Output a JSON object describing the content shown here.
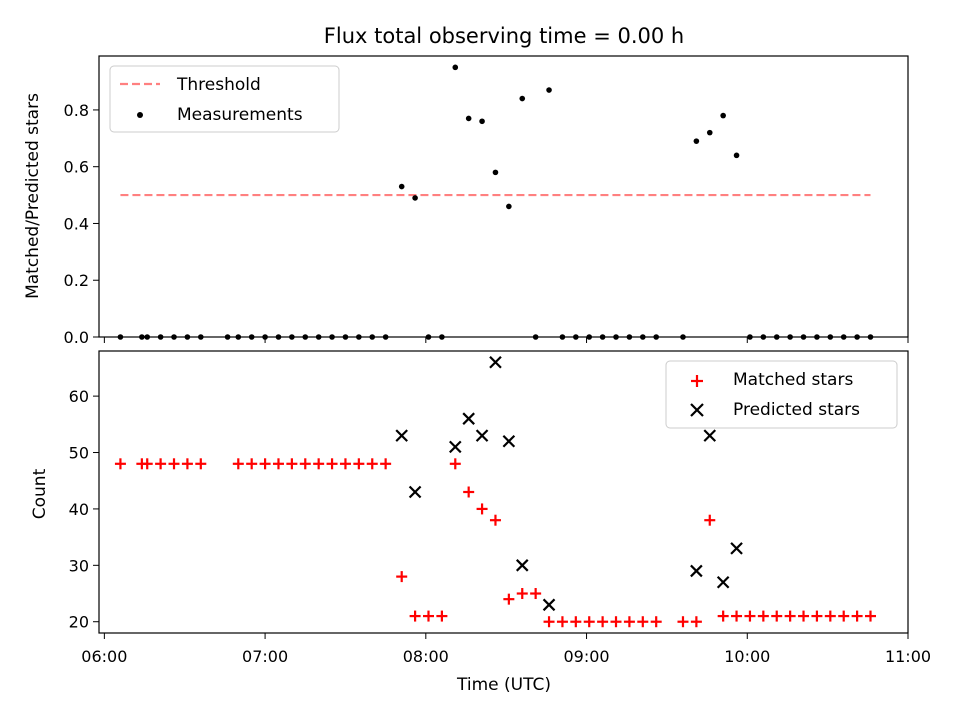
{
  "chart_data": [
    {
      "type": "scatter",
      "title": "Flux total observing time = 0.00 h",
      "ylabel": "Matched/Predicted stars",
      "ylim": [
        0,
        0.99
      ],
      "yticks": [
        0.0,
        0.2,
        0.4,
        0.6,
        0.8
      ],
      "ytick_labels": [
        "0.0",
        "0.2",
        "0.4",
        "0.6",
        "0.8"
      ],
      "xlim": [
        "05:58",
        "11:00"
      ],
      "legend": {
        "placement": "upper-left",
        "entries": [
          "Threshold",
          "Measurements"
        ]
      },
      "threshold": {
        "name": "Threshold",
        "value": 0.5,
        "x_range": [
          "06:06",
          "10:46"
        ],
        "color": "#ff8080",
        "style": "dashed"
      },
      "series": [
        {
          "name": "Measurements",
          "color": "#000000",
          "marker": "dot",
          "points": [
            [
              "06:06",
              0
            ],
            [
              "06:14",
              0
            ],
            [
              "06:16",
              0
            ],
            [
              "06:21",
              0
            ],
            [
              "06:26",
              0
            ],
            [
              "06:31",
              0
            ],
            [
              "06:36",
              0
            ],
            [
              "06:46",
              0
            ],
            [
              "06:50",
              0
            ],
            [
              "06:55",
              0
            ],
            [
              "07:00",
              0
            ],
            [
              "07:05",
              0
            ],
            [
              "07:10",
              0
            ],
            [
              "07:15",
              0
            ],
            [
              "07:20",
              0
            ],
            [
              "07:25",
              0
            ],
            [
              "07:30",
              0
            ],
            [
              "07:35",
              0
            ],
            [
              "07:40",
              0
            ],
            [
              "07:45",
              0
            ],
            [
              "07:51",
              0.53
            ],
            [
              "07:56",
              0.49
            ],
            [
              "08:01",
              0
            ],
            [
              "08:06",
              0
            ],
            [
              "08:11",
              0.95
            ],
            [
              "08:16",
              0.77
            ],
            [
              "08:21",
              0.76
            ],
            [
              "08:26",
              0.58
            ],
            [
              "08:31",
              0.46
            ],
            [
              "08:36",
              0.84
            ],
            [
              "08:41",
              0
            ],
            [
              "08:46",
              0.87
            ],
            [
              "08:51",
              0
            ],
            [
              "08:56",
              0
            ],
            [
              "09:01",
              0
            ],
            [
              "09:06",
              0
            ],
            [
              "09:11",
              0
            ],
            [
              "09:16",
              0
            ],
            [
              "09:21",
              0
            ],
            [
              "09:26",
              0
            ],
            [
              "09:36",
              0
            ],
            [
              "09:41",
              0.69
            ],
            [
              "09:46",
              0.72
            ],
            [
              "09:51",
              0.78
            ],
            [
              "09:56",
              0.64
            ],
            [
              "10:01",
              0
            ],
            [
              "10:06",
              0
            ],
            [
              "10:11",
              0
            ],
            [
              "10:16",
              0
            ],
            [
              "10:21",
              0
            ],
            [
              "10:26",
              0
            ],
            [
              "10:31",
              0
            ],
            [
              "10:36",
              0
            ],
            [
              "10:41",
              0
            ],
            [
              "10:46",
              0
            ]
          ]
        }
      ]
    },
    {
      "type": "scatter",
      "xlabel": "Time (UTC)",
      "ylabel": "Count",
      "ylim": [
        18,
        68
      ],
      "yticks": [
        20,
        30,
        40,
        50,
        60
      ],
      "ytick_labels": [
        "20",
        "30",
        "40",
        "50",
        "60"
      ],
      "xlim": [
        "05:58",
        "11:00"
      ],
      "xticks": [
        "06:00",
        "07:00",
        "08:00",
        "09:00",
        "10:00",
        "11:00"
      ],
      "xtick_labels": [
        "06:00",
        "07:00",
        "08:00",
        "09:00",
        "10:00",
        "11:00"
      ],
      "legend": {
        "placement": "upper-right",
        "entries": [
          "Matched stars",
          "Predicted stars"
        ]
      },
      "series": [
        {
          "name": "Matched stars",
          "color": "#ff0000",
          "marker": "plus",
          "points": [
            [
              "06:06",
              48
            ],
            [
              "06:14",
              48
            ],
            [
              "06:16",
              48
            ],
            [
              "06:21",
              48
            ],
            [
              "06:26",
              48
            ],
            [
              "06:31",
              48
            ],
            [
              "06:36",
              48
            ],
            [
              "06:50",
              48
            ],
            [
              "06:55",
              48
            ],
            [
              "07:00",
              48
            ],
            [
              "07:05",
              48
            ],
            [
              "07:10",
              48
            ],
            [
              "07:15",
              48
            ],
            [
              "07:20",
              48
            ],
            [
              "07:25",
              48
            ],
            [
              "07:30",
              48
            ],
            [
              "07:35",
              48
            ],
            [
              "07:40",
              48
            ],
            [
              "07:45",
              48
            ],
            [
              "07:51",
              28
            ],
            [
              "07:56",
              21
            ],
            [
              "08:01",
              21
            ],
            [
              "08:06",
              21
            ],
            [
              "08:11",
              48
            ],
            [
              "08:16",
              43
            ],
            [
              "08:21",
              40
            ],
            [
              "08:26",
              38
            ],
            [
              "08:31",
              24
            ],
            [
              "08:36",
              25
            ],
            [
              "08:41",
              25
            ],
            [
              "08:46",
              20
            ],
            [
              "08:51",
              20
            ],
            [
              "08:56",
              20
            ],
            [
              "09:01",
              20
            ],
            [
              "09:06",
              20
            ],
            [
              "09:11",
              20
            ],
            [
              "09:16",
              20
            ],
            [
              "09:21",
              20
            ],
            [
              "09:26",
              20
            ],
            [
              "09:36",
              20
            ],
            [
              "09:41",
              20
            ],
            [
              "09:46",
              38
            ],
            [
              "09:51",
              21
            ],
            [
              "09:56",
              21
            ],
            [
              "10:01",
              21
            ],
            [
              "10:06",
              21
            ],
            [
              "10:11",
              21
            ],
            [
              "10:16",
              21
            ],
            [
              "10:21",
              21
            ],
            [
              "10:26",
              21
            ],
            [
              "10:31",
              21
            ],
            [
              "10:36",
              21
            ],
            [
              "10:41",
              21
            ],
            [
              "10:46",
              21
            ]
          ]
        },
        {
          "name": "Predicted stars",
          "color": "#000000",
          "marker": "x",
          "points": [
            [
              "07:51",
              53
            ],
            [
              "07:56",
              43
            ],
            [
              "08:11",
              51
            ],
            [
              "08:16",
              56
            ],
            [
              "08:21",
              53
            ],
            [
              "08:26",
              66
            ],
            [
              "08:31",
              52
            ],
            [
              "08:36",
              30
            ],
            [
              "08:46",
              23
            ],
            [
              "09:41",
              29
            ],
            [
              "09:46",
              53
            ],
            [
              "09:51",
              27
            ],
            [
              "09:56",
              33
            ]
          ]
        }
      ]
    }
  ]
}
